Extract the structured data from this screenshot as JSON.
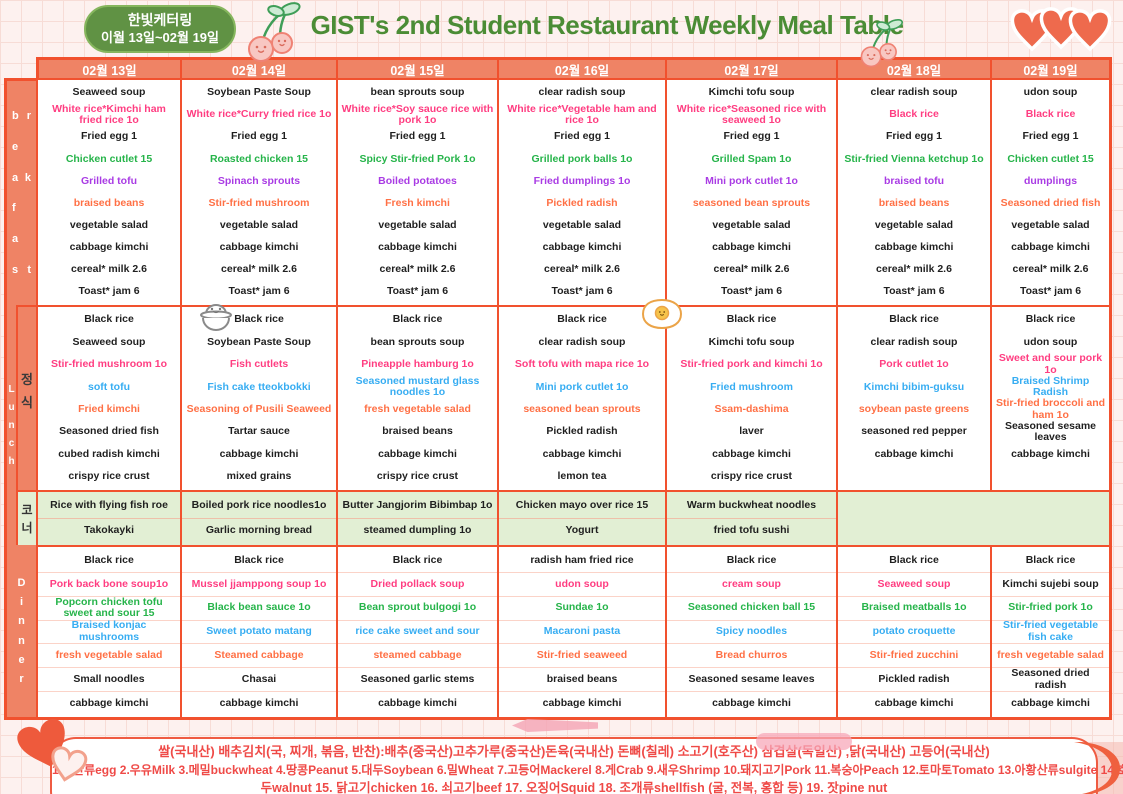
{
  "header": {
    "badge_line1": "한빛케터링",
    "badge_line2": "이월 13일~02월 19일",
    "title": "GIST's 2nd Student Restaurant Weekly Meal Table"
  },
  "table": {
    "day_headers": [
      "02월 13일",
      "02월 14일",
      "02월 15일",
      "02월 16일",
      "02월 17일",
      "02월 18일",
      "02월 19일"
    ],
    "breakfast": {
      "label_letters": [
        [
          "b",
          "r"
        ],
        [
          "e"
        ],
        [
          "a",
          "k"
        ],
        [
          "f"
        ],
        [
          "a"
        ],
        [
          "s",
          "t"
        ]
      ],
      "days": [
        [
          [
            "Seaweed soup",
            "k"
          ],
          [
            "White rice*Kimchi ham fried rice 1o",
            "p"
          ],
          [
            "Fried egg 1",
            "k"
          ],
          [
            "Chicken cutlet 15",
            "g"
          ],
          [
            "Grilled tofu",
            "v"
          ],
          [
            "braised beans",
            "o"
          ],
          [
            "vegetable salad",
            "k"
          ],
          [
            "cabbage kimchi",
            "k"
          ],
          [
            "cereal* milk 2.6",
            "k"
          ],
          [
            "Toast* jam 6",
            "k"
          ]
        ],
        [
          [
            "Soybean Paste Soup",
            "k"
          ],
          [
            "White rice*Curry fried rice 1o",
            "p"
          ],
          [
            "Fried egg 1",
            "k"
          ],
          [
            "Roasted chicken 15",
            "g"
          ],
          [
            "Spinach sprouts",
            "v"
          ],
          [
            "Stir-fried mushroom",
            "o"
          ],
          [
            "vegetable salad",
            "k"
          ],
          [
            "cabbage kimchi",
            "k"
          ],
          [
            "cereal* milk 2.6",
            "k"
          ],
          [
            "Toast* jam 6",
            "k"
          ]
        ],
        [
          [
            "bean sprouts soup",
            "k"
          ],
          [
            "White rice*Soy sauce rice with pork 1o",
            "p"
          ],
          [
            "Fried egg 1",
            "k"
          ],
          [
            "Spicy Stir-fried Pork 1o",
            "g"
          ],
          [
            "Boiled potatoes",
            "v"
          ],
          [
            "Fresh kimchi",
            "o"
          ],
          [
            "vegetable salad",
            "k"
          ],
          [
            "cabbage kimchi",
            "k"
          ],
          [
            "cereal* milk 2.6",
            "k"
          ],
          [
            "Toast* jam 6",
            "k"
          ]
        ],
        [
          [
            "clear radish soup",
            "k"
          ],
          [
            "White rice*Vegetable ham and rice 1o",
            "p"
          ],
          [
            "Fried egg 1",
            "k"
          ],
          [
            "Grilled pork balls 1o",
            "g"
          ],
          [
            "Fried dumplings 1o",
            "v"
          ],
          [
            "Pickled radish",
            "o"
          ],
          [
            "vegetable salad",
            "k"
          ],
          [
            "cabbage kimchi",
            "k"
          ],
          [
            "cereal* milk 2.6",
            "k"
          ],
          [
            "Toast* jam 6",
            "k"
          ]
        ],
        [
          [
            "Kimchi tofu soup",
            "k"
          ],
          [
            "White rice*Seasoned rice with seaweed 1o",
            "p"
          ],
          [
            "Fried egg 1",
            "k"
          ],
          [
            "Grilled Spam 1o",
            "g"
          ],
          [
            "Mini pork cutlet 1o",
            "v"
          ],
          [
            "seasoned bean sprouts",
            "o"
          ],
          [
            "vegetable salad",
            "k"
          ],
          [
            "cabbage kimchi",
            "k"
          ],
          [
            "cereal* milk 2.6",
            "k"
          ],
          [
            "Toast* jam 6",
            "k"
          ]
        ],
        [
          [
            "clear radish soup",
            "k"
          ],
          [
            "Black rice",
            "p"
          ],
          [
            "Fried egg 1",
            "k"
          ],
          [
            "Stir-fried Vienna ketchup 1o",
            "g"
          ],
          [
            "braised tofu",
            "v"
          ],
          [
            "braised beans",
            "o"
          ],
          [
            "vegetable salad",
            "k"
          ],
          [
            "cabbage kimchi",
            "k"
          ],
          [
            "cereal* milk 2.6",
            "k"
          ],
          [
            "Toast* jam 6",
            "k"
          ]
        ],
        [
          [
            "udon soup",
            "k"
          ],
          [
            "Black rice",
            "p"
          ],
          [
            "Fried egg 1",
            "k"
          ],
          [
            "Chicken cutlet 15",
            "g"
          ],
          [
            "dumplings",
            "v"
          ],
          [
            "Seasoned dried fish",
            "o"
          ],
          [
            "vegetable salad",
            "k"
          ],
          [
            "cabbage kimchi",
            "k"
          ],
          [
            "cereal* milk 2.6",
            "k"
          ],
          [
            "Toast* jam 6",
            "k"
          ]
        ]
      ]
    },
    "lunch": {
      "label": "Lunch",
      "label_ko": "정식",
      "days": [
        [
          [
            "Black rice",
            "k"
          ],
          [
            "Seaweed soup",
            "k"
          ],
          [
            "Stir-fried mushroom 1o",
            "p"
          ],
          [
            "soft tofu",
            "b"
          ],
          [
            "Fried kimchi",
            "o"
          ],
          [
            "Seasoned dried fish",
            "k"
          ],
          [
            "cubed radish kimchi",
            "k"
          ],
          [
            "crispy rice crust",
            "k"
          ]
        ],
        [
          [
            "Black rice",
            "k"
          ],
          [
            "Soybean Paste Soup",
            "k"
          ],
          [
            "Fish cutlets",
            "p"
          ],
          [
            "Fish cake tteokbokki",
            "b"
          ],
          [
            "Seasoning of Pusili Seaweed",
            "o"
          ],
          [
            "Tartar sauce",
            "k"
          ],
          [
            "cabbage kimchi",
            "k"
          ],
          [
            "mixed grains",
            "k"
          ]
        ],
        [
          [
            "Black rice",
            "k"
          ],
          [
            "bean sprouts soup",
            "k"
          ],
          [
            "Pineapple hamburg 1o",
            "p"
          ],
          [
            "Seasoned mustard glass noodles 1o",
            "b"
          ],
          [
            "fresh vegetable salad",
            "o"
          ],
          [
            "braised beans",
            "k"
          ],
          [
            "cabbage kimchi",
            "k"
          ],
          [
            "crispy rice crust",
            "k"
          ]
        ],
        [
          [
            "Black rice",
            "k"
          ],
          [
            "clear radish soup",
            "k"
          ],
          [
            "Soft tofu with mapa rice 1o",
            "p"
          ],
          [
            "Mini pork cutlet 1o",
            "b"
          ],
          [
            "seasoned bean sprouts",
            "o"
          ],
          [
            "Pickled radish",
            "k"
          ],
          [
            "cabbage kimchi",
            "k"
          ],
          [
            "lemon tea",
            "k"
          ]
        ],
        [
          [
            "Black rice",
            "k"
          ],
          [
            "Kimchi tofu soup",
            "k"
          ],
          [
            "Stir-fried pork and kimchi 1o",
            "p"
          ],
          [
            "Fried mushroom",
            "b"
          ],
          [
            "Ssam-dashima",
            "o"
          ],
          [
            "laver",
            "k"
          ],
          [
            "cabbage kimchi",
            "k"
          ],
          [
            "crispy rice crust",
            "k"
          ]
        ],
        [
          [
            "Black rice",
            "k"
          ],
          [
            "clear radish soup",
            "k"
          ],
          [
            "Pork cutlet 1o",
            "p"
          ],
          [
            "Kimchi bibim-guksu",
            "b"
          ],
          [
            "soybean paste greens",
            "o"
          ],
          [
            "seasoned red pepper",
            "k"
          ],
          [
            "cabbage kimchi",
            "k"
          ],
          [
            "",
            ""
          ]
        ],
        [
          [
            "Black rice",
            "k"
          ],
          [
            "udon soup",
            "k"
          ],
          [
            "Sweet and sour pork 1o",
            "p"
          ],
          [
            "Braised Shrimp Radish",
            "b"
          ],
          [
            "Stir-fried broccoli and ham 1o",
            "o"
          ],
          [
            "Seasoned sesame leaves",
            "k"
          ],
          [
            "cabbage kimchi",
            "k"
          ],
          [
            "",
            ""
          ]
        ]
      ]
    },
    "corner": {
      "label_ko": "코너",
      "days": [
        [
          [
            "Rice with flying fish roe",
            "k"
          ],
          [
            "Takokayki",
            "k"
          ]
        ],
        [
          [
            "Boiled pork rice noodles1o",
            "k"
          ],
          [
            "Garlic morning bread",
            "k"
          ]
        ],
        [
          [
            "Butter Jangjorim Bibimbap 1o",
            "k"
          ],
          [
            "steamed dumpling 1o",
            "k"
          ]
        ],
        [
          [
            "Chicken mayo over rice 15",
            "k"
          ],
          [
            "Yogurt",
            "k"
          ]
        ],
        [
          [
            "Warm buckwheat noodles",
            "k"
          ],
          [
            "fried tofu sushi",
            "k"
          ]
        ]
      ]
    },
    "dinner": {
      "label_letters": [
        [
          "D"
        ],
        [
          "i"
        ],
        [
          "n"
        ],
        [
          "n"
        ],
        [
          "e"
        ],
        [
          "r"
        ]
      ],
      "days": [
        [
          [
            "Black rice",
            "k"
          ],
          [
            "Pork back bone soup1o",
            "p"
          ],
          [
            "Popcorn chicken tofu sweet and sour 15",
            "g"
          ],
          [
            "Braised konjac mushrooms",
            "b"
          ],
          [
            "fresh vegetable salad",
            "o"
          ],
          [
            "Small noodles",
            "k"
          ],
          [
            "cabbage kimchi",
            "k"
          ]
        ],
        [
          [
            "Black rice",
            "k"
          ],
          [
            "Mussel jjamppong soup 1o",
            "p"
          ],
          [
            "Black bean sauce 1o",
            "g"
          ],
          [
            "Sweet potato matang",
            "b"
          ],
          [
            "Steamed cabbage",
            "o"
          ],
          [
            "Chasai",
            "k"
          ],
          [
            "cabbage kimchi",
            "k"
          ]
        ],
        [
          [
            "Black rice",
            "k"
          ],
          [
            "Dried pollack soup",
            "p"
          ],
          [
            "Bean sprout bulgogi 1o",
            "g"
          ],
          [
            "rice cake sweet and sour",
            "b"
          ],
          [
            "steamed cabbage",
            "o"
          ],
          [
            "Seasoned garlic stems",
            "k"
          ],
          [
            "cabbage kimchi",
            "k"
          ]
        ],
        [
          [
            "radish ham fried rice",
            "k"
          ],
          [
            "udon soup",
            "p"
          ],
          [
            "Sundae 1o",
            "g"
          ],
          [
            "Macaroni pasta",
            "b"
          ],
          [
            "Stir-fried seaweed",
            "o"
          ],
          [
            "braised beans",
            "k"
          ],
          [
            "cabbage kimchi",
            "k"
          ]
        ],
        [
          [
            "Black rice",
            "k"
          ],
          [
            "cream soup",
            "p"
          ],
          [
            "Seasoned chicken ball 15",
            "g"
          ],
          [
            "Spicy noodles",
            "b"
          ],
          [
            "Bread churros",
            "o"
          ],
          [
            "Seasoned sesame leaves",
            "k"
          ],
          [
            "cabbage kimchi",
            "k"
          ]
        ],
        [
          [
            "Black rice",
            "k"
          ],
          [
            "Seaweed soup",
            "p"
          ],
          [
            "Braised meatballs 1o",
            "g"
          ],
          [
            "potato croquette",
            "b"
          ],
          [
            "Stir-fried zucchini",
            "o"
          ],
          [
            "Pickled radish",
            "k"
          ],
          [
            "cabbage kimchi",
            "k"
          ]
        ],
        [
          [
            "Black rice",
            "k"
          ],
          [
            "Kimchi sujebi soup",
            "k"
          ],
          [
            "Stir-fried pork 1o",
            "g"
          ],
          [
            "Stir-fried vegetable fish cake",
            "b"
          ],
          [
            "fresh vegetable salad",
            "o"
          ],
          [
            "Seasoned dried radish",
            "k"
          ],
          [
            "cabbage kimchi",
            "k"
          ]
        ]
      ]
    }
  },
  "footer": {
    "line1": "쌀(국내산) 배추김치(국, 찌개, 볶음, 반찬):배추(중국산)고추가루(중국산)돈육(국내산) 돈뼈(칠레) 소고기(호주산) 삼겹살(독일산) ,닭(국내산) 고등어(국내산)",
    "line2": "1.계란류egg 2.우유Milk 3.메밀buckwheat 4.땅콩Peanut 5.대두Soybean 6.밀Wheat 7.고등어Mackerel 8.게Crab 9.새우Shrimp 10.돼지고기Pork 11.복숭아Peach 12.토마토Tomato 13.아황산류sulgite 14.호",
    "line3": "두walnut 15. 닭고기chicken 16. 쇠고기beef 17. 오징어Squid 18. 조개류shellfish (굴, 전복, 홍합 등) 19. 잣pine nut"
  },
  "colors": {
    "accent_border": "#f1512e",
    "band_bg": "#ef8365",
    "corner_bg": "#e2efd4",
    "item_pink": "#ff3d81",
    "item_green": "#26b44a",
    "item_purple": "#a93be4",
    "item_orange": "#ff7045",
    "item_blue": "#37adf2",
    "title_green": "#4b8c35",
    "badge_green": "#609244",
    "footer_red": "#ef4a47"
  },
  "icons": [
    "cherries-icon",
    "hearts-icon",
    "rice-bowl-icon",
    "fried-egg-icon",
    "heart-doodle-icon"
  ]
}
